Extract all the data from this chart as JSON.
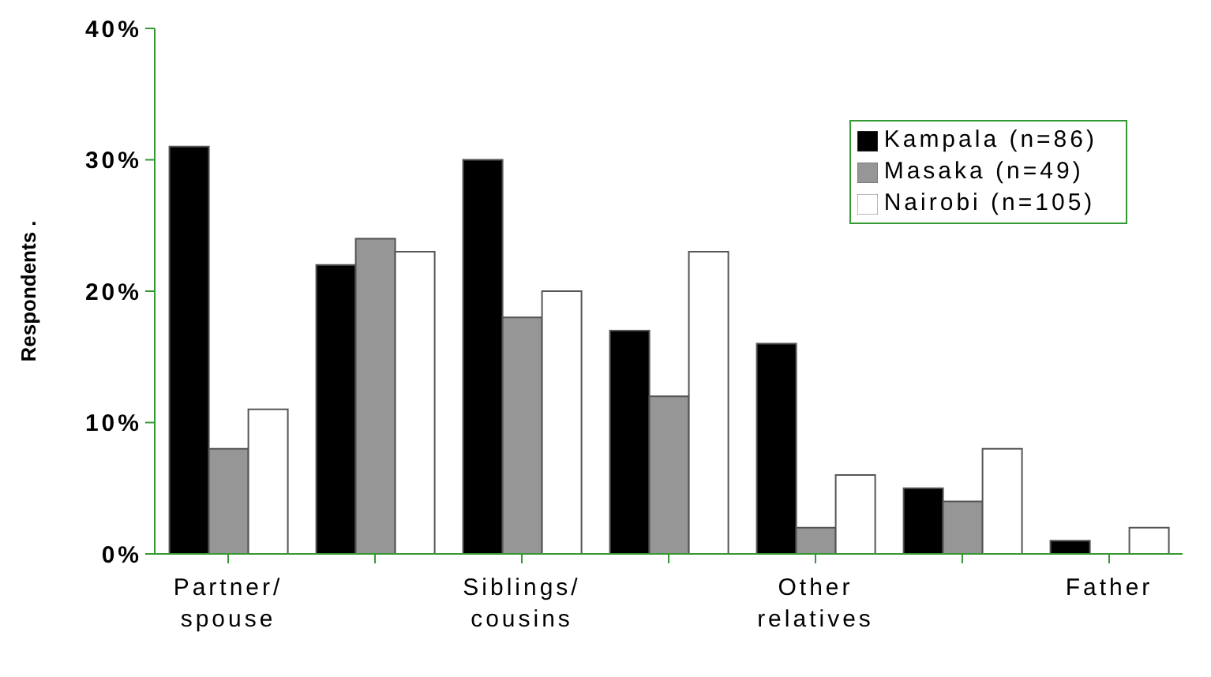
{
  "chart_data": {
    "type": "bar",
    "ylabel": "Respondents .",
    "categories": [
      "Partner/ spouse",
      null,
      "Siblings/ cousins",
      null,
      "Other relatives",
      null,
      "Father"
    ],
    "series": [
      {
        "name": "Kampala (n=86)",
        "color": "#000000",
        "values": [
          31,
          22,
          30,
          17,
          16,
          5,
          1
        ]
      },
      {
        "name": "Masaka (n=49)",
        "color": "#969696",
        "values": [
          8,
          24,
          18,
          12,
          2,
          4,
          0
        ]
      },
      {
        "name": "Nairobi (n=105)",
        "color": "#ffffff",
        "values": [
          11,
          23,
          20,
          23,
          6,
          8,
          2
        ]
      }
    ],
    "ylim": [
      0,
      40
    ],
    "yticks": [
      {
        "value": 0,
        "label": "0%"
      },
      {
        "value": 10,
        "label": "10%"
      },
      {
        "value": 20,
        "label": "20%"
      },
      {
        "value": 30,
        "label": "30%"
      },
      {
        "value": 40,
        "label": "40%"
      }
    ],
    "grid": false,
    "legend": "top right"
  }
}
